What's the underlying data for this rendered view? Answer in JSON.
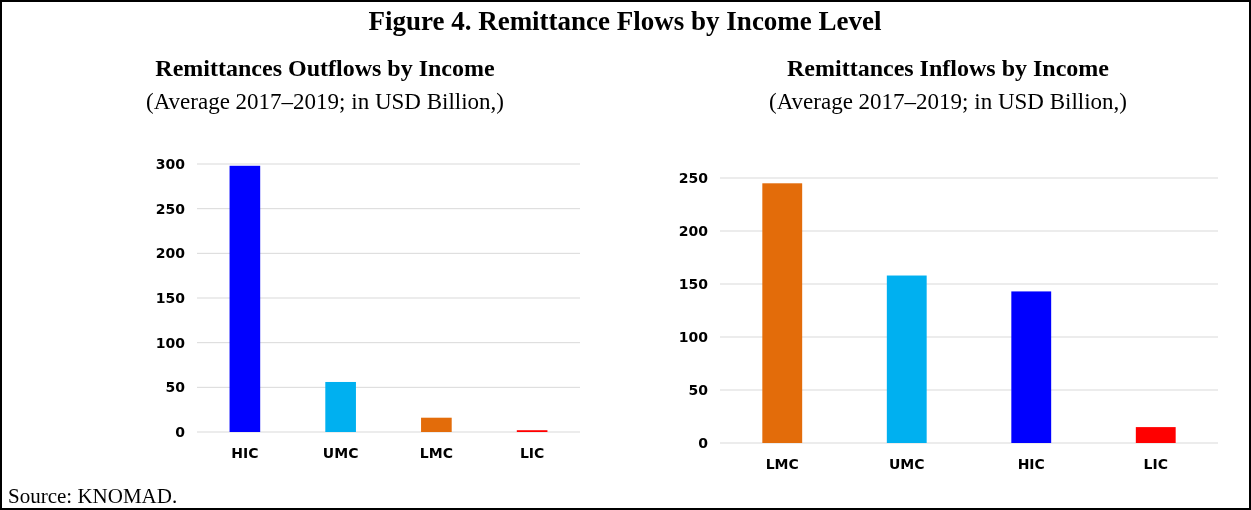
{
  "chart_data": [
    {
      "type": "bar",
      "title": "Remittances Outflows by Income",
      "subtitle": "(Average 2017–2019; in USD Billion,)",
      "annotations": [
        "Figure 4. Remittance Flows by Income Level",
        "Source: KNOMAD."
      ],
      "categories": [
        "HIC",
        "UMC",
        "LMC",
        "LIC"
      ],
      "values": [
        298,
        56,
        16,
        2
      ],
      "colors": [
        "#0000ff",
        "#00b0f0",
        "#e36c0a",
        "#ff0000"
      ],
      "ylim": [
        0,
        300
      ],
      "yticks": [
        0,
        50,
        100,
        150,
        200,
        250,
        300
      ],
      "grid": "y"
    },
    {
      "type": "bar",
      "title": "Remittances Inflows by Income",
      "subtitle": "(Average 2017–2019; in USD Billion,)",
      "categories": [
        "LMC",
        "UMC",
        "HIC",
        "LIC"
      ],
      "values": [
        245,
        158,
        143,
        15
      ],
      "colors": [
        "#e36c0a",
        "#00b0f0",
        "#0000ff",
        "#ff0000"
      ],
      "ylim": [
        0,
        250
      ],
      "yticks": [
        0,
        50,
        100,
        150,
        200,
        250
      ],
      "grid": "y"
    }
  ]
}
